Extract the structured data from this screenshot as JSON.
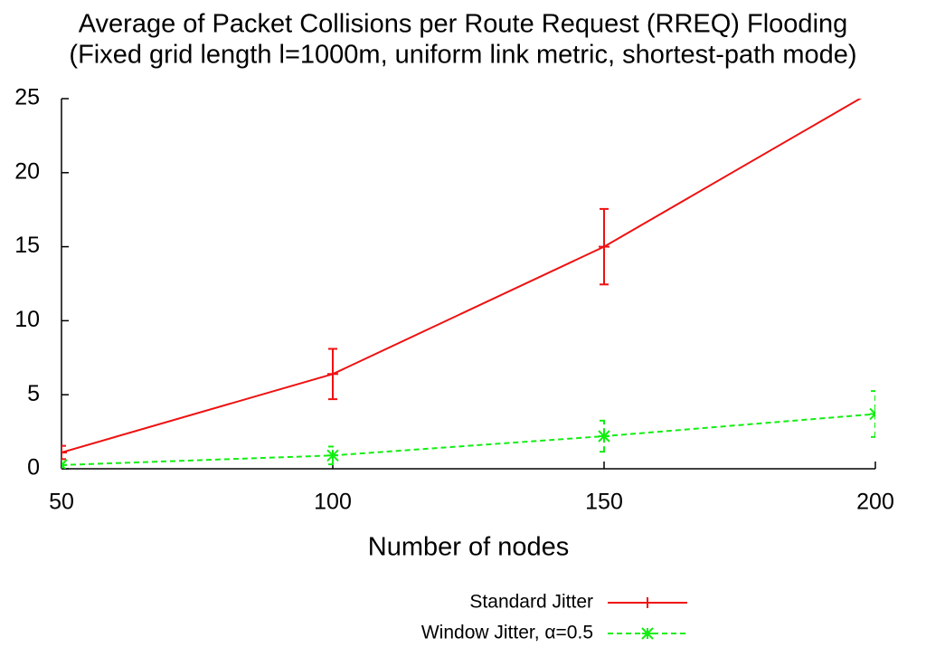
{
  "chart_data": {
    "type": "line",
    "title": "Average of Packet Collisions per Route Request (RREQ) Flooding",
    "subtitle": "(Fixed grid length l=1000m, uniform link metric, shortest-path mode)",
    "x_label": "Number of nodes",
    "x": [
      50,
      100,
      150,
      200
    ],
    "series": [
      {
        "name": "Standard Jitter",
        "color": "#ee1111",
        "dash": "solid",
        "marker": "plus",
        "values": [
          1.1,
          6.4,
          15.0,
          25.6
        ],
        "errors": [
          0.45,
          1.7,
          2.55,
          null
        ]
      },
      {
        "name": "Window Jitter, α=0.5",
        "color": "#11ee11",
        "dash": "dashed",
        "marker": "star",
        "values": [
          0.25,
          0.9,
          2.2,
          3.7
        ],
        "errors": [
          0.3,
          0.6,
          1.05,
          1.55
        ]
      }
    ],
    "xlim": [
      50,
      200
    ],
    "xticks": [
      50,
      100,
      150,
      200
    ],
    "ylim": [
      0,
      25
    ],
    "yticks": [
      0,
      5,
      10,
      15,
      20,
      25
    ],
    "legend": "bottom-right"
  }
}
